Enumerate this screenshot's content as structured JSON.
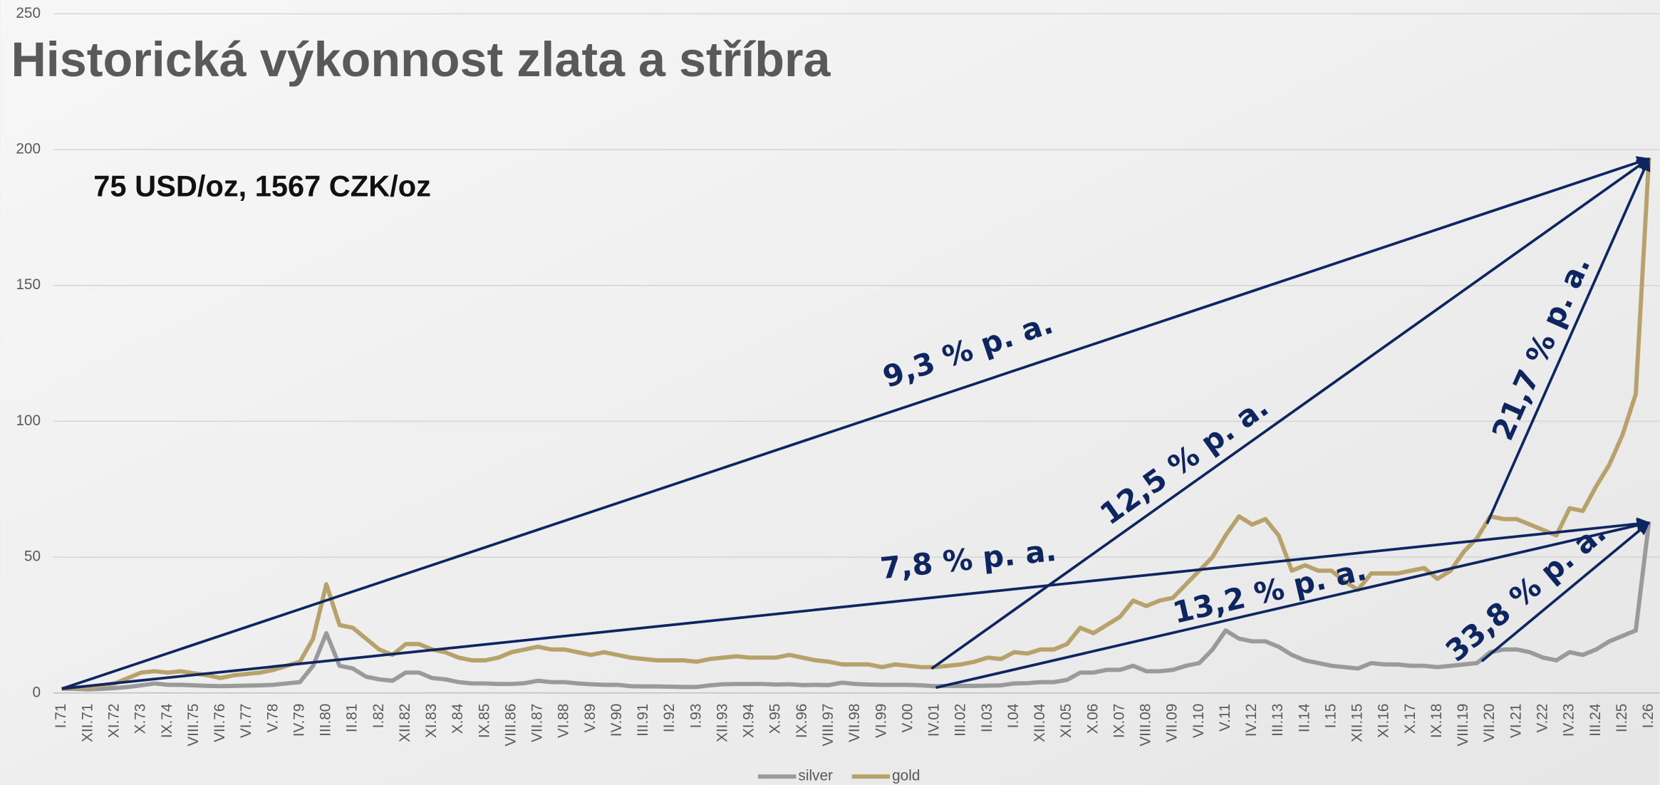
{
  "chart_data": {
    "type": "line",
    "title": "Historická výkonnost zlata a stříbra",
    "subtitle": "75 USD/oz, 1567 CZK/oz",
    "categories": [
      "I.71",
      null,
      "XII.71",
      null,
      "XI.72",
      null,
      "X.73",
      null,
      "IX.74",
      null,
      "VIII.75",
      null,
      "VII.76",
      null,
      "VI.77",
      null,
      "V.78",
      null,
      "IV.79",
      null,
      "III.80",
      null,
      "II.81",
      null,
      "I.82",
      null,
      "XII.82",
      null,
      "XI.83",
      null,
      "X.84",
      null,
      "IX.85",
      null,
      "VIII.86",
      null,
      "VII.87",
      null,
      "VI.88",
      null,
      "V.89",
      null,
      "IV.90",
      null,
      "III.91",
      null,
      "II.92",
      null,
      "I.93",
      null,
      "XII.93",
      null,
      "XI.94",
      null,
      "X.95",
      null,
      "IX.96",
      null,
      "VIII.97",
      null,
      "VII.98",
      null,
      "VI.99",
      null,
      "V.00",
      null,
      "IV.01",
      null,
      "III.02",
      null,
      "II.03",
      null,
      "I.04",
      null,
      "XII.04",
      null,
      "XI.05",
      null,
      "X.06",
      null,
      "IX.07",
      null,
      "VIII.08",
      null,
      "VII.09",
      null,
      "VI.10",
      null,
      "V.11",
      null,
      "IV.12",
      null,
      "III.13",
      null,
      "II.14",
      null,
      "I.15",
      null,
      "XII.15",
      null,
      "XI.16",
      null,
      "X.17",
      null,
      "IX.18",
      null,
      "VIII.19",
      null,
      "VII.20",
      null,
      "VI.21",
      null,
      "V.22",
      null,
      "IV.23",
      null,
      "III.24",
      null,
      "II.25",
      null,
      "I.26"
    ],
    "series": [
      {
        "name": "silver",
        "color": "#9a9a9a",
        "values": [
          1.5,
          1.5,
          1.3,
          1.5,
          1.8,
          2.2,
          2.8,
          3.5,
          3,
          3,
          2.8,
          2.6,
          2.5,
          2.6,
          2.7,
          2.8,
          3,
          3.5,
          4,
          10,
          22,
          10,
          9,
          6,
          5,
          4.5,
          7.5,
          7.5,
          5.5,
          5,
          4,
          3.5,
          3.5,
          3.3,
          3.3,
          3.6,
          4.5,
          4,
          4,
          3.5,
          3.2,
          3,
          3,
          2.5,
          2.4,
          2.4,
          2.3,
          2.2,
          2.2,
          2.8,
          3.2,
          3.3,
          3.3,
          3.3,
          3.1,
          3.2,
          2.9,
          3,
          2.9,
          3.8,
          3.3,
          3.1,
          3,
          3,
          3,
          2.8,
          2.5,
          2.6,
          2.6,
          2.6,
          2.7,
          2.8,
          3.5,
          3.6,
          4,
          4,
          4.8,
          7.5,
          7.5,
          8.5,
          8.5,
          10,
          8,
          8,
          8.5,
          10,
          11,
          16,
          23,
          20,
          19,
          19,
          17,
          14,
          12,
          11,
          10,
          9.5,
          9,
          11,
          10.5,
          10.5,
          10,
          10,
          9.5,
          10,
          10.5,
          11,
          15,
          16,
          16,
          15,
          13,
          12,
          15,
          14,
          16,
          19,
          21,
          23,
          63
        ]
      },
      {
        "name": "gold",
        "color": "#b8a26b",
        "values": [
          1.5,
          2,
          2,
          2.8,
          3.5,
          5.5,
          7.5,
          8,
          7.5,
          8,
          7.2,
          6.5,
          5.5,
          6.5,
          7,
          7.5,
          8.5,
          10,
          11.5,
          20,
          40,
          25,
          24,
          20,
          16,
          14,
          18,
          18,
          16,
          15,
          13,
          12,
          12,
          13,
          15,
          16,
          17,
          16,
          16,
          15,
          14,
          15,
          14,
          13,
          12.5,
          12,
          12,
          12,
          11.5,
          12.5,
          13,
          13.5,
          13,
          13,
          13,
          14,
          13,
          12,
          11.5,
          10.5,
          10.5,
          10.5,
          9.5,
          10.5,
          10,
          9.5,
          9.5,
          10,
          10.5,
          11.5,
          13,
          12.5,
          15,
          14.5,
          16,
          16,
          18,
          24,
          22,
          25,
          28,
          34,
          32,
          34,
          35,
          40,
          45,
          50,
          58,
          65,
          62,
          64,
          58,
          45,
          47,
          45,
          45,
          41,
          38,
          44,
          44,
          44,
          45,
          46,
          42,
          45,
          52,
          57,
          65,
          64,
          64,
          62,
          60,
          58,
          68,
          67,
          76,
          84,
          95,
          110,
          197
        ]
      }
    ],
    "ylim": [
      0,
      250
    ],
    "yticks": [
      0,
      50,
      100,
      150,
      200,
      250
    ],
    "grid": true,
    "legend": "bottom",
    "annotation_color": "#0d2560",
    "annotations": [
      "9,3 % p. a.",
      "7,8 % p. a.",
      "12,5 % p. a.",
      "13,2 % p. a.",
      "21,7 % p. a.",
      "33,8 % p. a."
    ]
  }
}
